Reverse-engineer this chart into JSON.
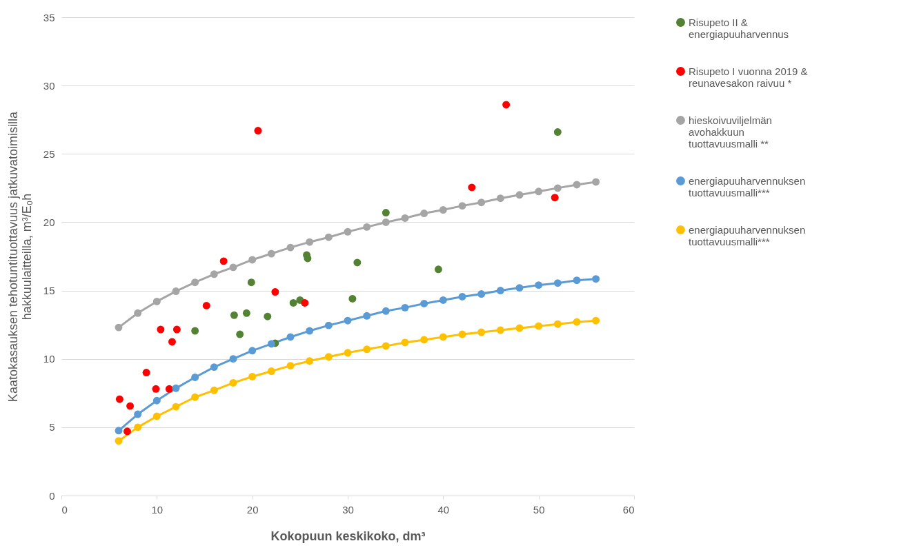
{
  "chart_data": {
    "type": "scatter",
    "xlabel": "Kokopuun keskikoko, dm³",
    "ylabel": "Kaatokasauksen tehotuntituottavuus jatkuvatoimisilla hakkuulaitteilla, m³/E₀h",
    "xlim": [
      0,
      60
    ],
    "xticks": [
      0,
      10,
      20,
      30,
      40,
      50,
      60
    ],
    "ylim": [
      0,
      35
    ],
    "yticks": [
      0,
      5,
      10,
      15,
      20,
      25,
      30,
      35
    ],
    "grid": "y",
    "legend": "right",
    "marker": "circle",
    "series": [
      {
        "name": "Risupeto II & energiapuuharvennus",
        "type": "scatter",
        "color": "#548235",
        "x": [
          14.0,
          18.1,
          18.7,
          19.4,
          19.9,
          21.6,
          22.4,
          24.3,
          25.0,
          25.7,
          25.8,
          30.5,
          31.0,
          34.0,
          39.5,
          52.0
        ],
        "values": [
          12.05,
          13.2,
          11.8,
          13.35,
          15.6,
          13.1,
          11.15,
          14.1,
          14.3,
          17.6,
          17.35,
          14.4,
          17.05,
          20.7,
          16.55,
          26.6
        ]
      },
      {
        "name": "Risupeto I vuonna 2019 & reunavesakon raivuu *",
        "type": "scatter",
        "color": "#ff0000",
        "x": [
          6.1,
          6.9,
          7.2,
          8.9,
          9.9,
          10.4,
          11.3,
          11.6,
          12.1,
          15.2,
          17.0,
          20.6,
          22.4,
          25.5,
          43.0,
          46.6,
          51.7
        ],
        "values": [
          7.05,
          4.7,
          6.55,
          9.0,
          7.8,
          12.15,
          7.8,
          11.25,
          12.15,
          13.9,
          17.15,
          26.7,
          14.9,
          14.1,
          22.55,
          28.6,
          21.8
        ]
      },
      {
        "name": "hieskoivuviljelmän avohakkuun tuottavuusmalli **",
        "type": "line",
        "color": "#a5a5a5",
        "x": [
          6,
          8,
          10,
          12,
          14,
          16,
          18,
          20,
          22,
          24,
          26,
          28,
          30,
          32,
          34,
          36,
          38,
          40,
          42,
          44,
          46,
          48,
          50,
          52,
          54,
          56
        ],
        "values": [
          12.3,
          13.35,
          14.2,
          14.95,
          15.6,
          16.2,
          16.7,
          17.25,
          17.7,
          18.15,
          18.55,
          18.9,
          19.3,
          19.65,
          20.0,
          20.3,
          20.65,
          20.9,
          21.2,
          21.45,
          21.75,
          22.0,
          22.25,
          22.5,
          22.75,
          22.95
        ]
      },
      {
        "name": "energiapuuharvennuksen tuottavuusmalli***",
        "type": "line",
        "color": "#5b9bd5",
        "x": [
          6,
          8,
          10,
          12,
          14,
          16,
          18,
          20,
          22,
          24,
          26,
          28,
          30,
          32,
          34,
          36,
          38,
          40,
          42,
          44,
          46,
          48,
          50,
          52,
          54,
          56
        ],
        "values": [
          4.75,
          5.95,
          6.95,
          7.85,
          8.65,
          9.4,
          10.0,
          10.6,
          11.1,
          11.6,
          12.05,
          12.45,
          12.8,
          13.15,
          13.5,
          13.75,
          14.05,
          14.3,
          14.55,
          14.75,
          15.0,
          15.2,
          15.4,
          15.55,
          15.75,
          15.85
        ]
      },
      {
        "name": "energiapuuharvennuksen tuottavuusmalli***",
        "type": "line",
        "color": "#ffc000",
        "x": [
          6,
          8,
          10,
          12,
          14,
          16,
          18,
          20,
          22,
          24,
          26,
          28,
          30,
          32,
          34,
          36,
          38,
          40,
          42,
          44,
          46,
          48,
          50,
          52,
          54,
          56
        ],
        "values": [
          4.0,
          5.0,
          5.8,
          6.5,
          7.2,
          7.7,
          8.25,
          8.7,
          9.1,
          9.5,
          9.85,
          10.15,
          10.45,
          10.7,
          10.95,
          11.2,
          11.4,
          11.6,
          11.8,
          11.95,
          12.1,
          12.25,
          12.4,
          12.55,
          12.7,
          12.8
        ]
      }
    ]
  }
}
